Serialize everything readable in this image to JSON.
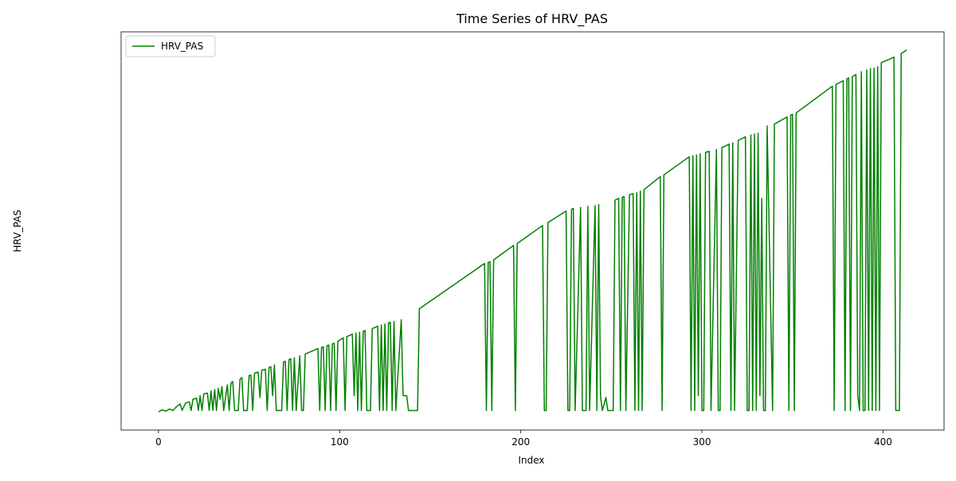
{
  "chart_data": {
    "type": "line",
    "title": "Time Series of HRV_PAS",
    "xlabel": "Index",
    "ylabel": "HRV_PAS",
    "xlim": [
      -20.65,
      433.65
    ],
    "xticks": [
      0,
      100,
      200,
      300,
      400
    ],
    "ylim": [
      -5,
      105
    ],
    "legend": "upper left",
    "x": [
      0,
      2,
      4,
      6,
      8,
      10,
      12,
      13,
      15,
      17,
      18,
      19,
      21,
      22,
      23,
      24,
      25,
      27,
      28,
      29,
      30,
      31,
      32,
      33,
      34,
      35,
      36,
      38,
      39,
      40,
      41,
      42,
      44,
      45,
      46,
      47,
      49,
      50,
      51,
      52,
      53,
      55,
      56,
      57,
      59,
      60,
      61,
      62,
      63,
      64,
      65,
      68,
      69,
      70,
      71,
      72,
      73,
      74,
      75,
      76,
      78,
      79,
      80,
      81,
      88,
      89,
      90,
      91,
      92,
      93,
      94,
      95,
      96,
      97,
      98,
      99,
      102,
      103,
      104,
      107,
      108,
      109,
      110,
      111,
      112,
      113,
      114,
      115,
      117,
      118,
      121,
      122,
      123,
      124,
      125,
      126,
      127,
      128,
      129,
      130,
      131,
      134,
      135,
      137,
      138,
      143,
      144,
      180,
      181,
      182,
      183,
      184,
      185,
      196,
      197,
      198,
      212,
      213,
      214,
      215,
      225,
      226,
      227,
      228,
      229,
      230,
      233,
      234,
      236,
      237,
      238,
      241,
      242,
      243,
      244,
      245,
      247,
      248,
      251,
      252,
      254,
      255,
      256,
      257,
      258,
      260,
      262,
      263,
      264,
      265,
      266,
      267,
      268,
      277,
      278,
      279,
      293,
      294,
      295,
      296,
      297,
      298,
      299,
      300,
      301,
      302,
      304,
      305,
      308,
      309,
      310,
      311,
      315,
      316,
      317,
      318,
      320,
      324,
      325,
      326,
      327,
      328,
      329,
      330,
      331,
      332,
      333,
      334,
      335,
      336,
      339,
      340,
      347,
      348,
      349,
      350,
      351,
      352,
      372,
      373,
      374,
      378,
      379,
      380,
      381,
      382,
      383,
      385,
      386,
      387,
      388,
      389,
      390,
      391,
      392,
      393,
      394,
      395,
      396,
      397,
      398,
      399,
      406,
      407,
      409,
      410,
      413
    ],
    "series": [
      {
        "name": "HRV_PAS",
        "color": "#008000",
        "values": [
          0,
          0.6,
          0.2,
          0.8,
          0.4,
          1.5,
          2.2,
          0.4,
          2.5,
          2.8,
          0.4,
          3.5,
          3.8,
          0.4,
          4.5,
          0.4,
          5,
          5.2,
          0.4,
          5.8,
          0.4,
          6.2,
          0.4,
          6.5,
          3.5,
          7,
          0.4,
          7.5,
          0.4,
          8,
          8.4,
          0.4,
          0.4,
          9,
          9.5,
          0.4,
          0.4,
          10,
          10.2,
          0.4,
          10.7,
          11,
          4,
          11.5,
          11.8,
          0.4,
          12.3,
          12.5,
          4.5,
          13,
          0.4,
          0.4,
          13.8,
          14,
          0.4,
          14.4,
          14.7,
          0.4,
          15,
          0.4,
          15.5,
          0.4,
          0.4,
          16,
          17.5,
          0.4,
          17.8,
          18,
          0.4,
          18.3,
          18.5,
          0.4,
          18.8,
          19,
          0.4,
          19.5,
          20.5,
          0.4,
          20.8,
          21.5,
          4.5,
          21.8,
          0.4,
          22,
          0.4,
          22.3,
          22.5,
          0.4,
          0.4,
          23,
          23.7,
          0.4,
          24,
          0.4,
          24.3,
          0.4,
          24.6,
          24.8,
          0.4,
          25,
          0.4,
          25.5,
          4.5,
          4.5,
          0.4,
          0.4,
          28.5,
          41,
          0.4,
          41.3,
          41.5,
          0.4,
          42,
          46,
          0.4,
          46.5,
          51.5,
          0.4,
          0.4,
          52.3,
          55.5,
          0.4,
          0.4,
          56,
          56.2,
          0.4,
          56.5,
          0.4,
          0.4,
          56.8,
          0.4,
          57,
          0.4,
          57.3,
          4.5,
          0.4,
          4,
          0.4,
          0.4,
          58.5,
          59,
          0.4,
          59.3,
          59.5,
          0.4,
          60,
          60.3,
          0.4,
          60.6,
          0.4,
          61,
          0.4,
          61.4,
          65,
          0.4,
          65.5,
          70.5,
          0.4,
          70.8,
          0.4,
          71,
          4.5,
          71.3,
          0.4,
          0.4,
          71.7,
          72,
          0.4,
          72.5,
          0.4,
          0.4,
          73,
          74,
          0.4,
          74.3,
          0.4,
          75,
          76,
          0.4,
          0.4,
          76.5,
          0.4,
          76.8,
          0.4,
          77,
          4.5,
          59,
          0.4,
          0.4,
          79,
          0.4,
          79.5,
          81.5,
          0.4,
          82,
          82.2,
          0.4,
          82.6,
          90,
          0.4,
          90.5,
          91.5,
          0.4,
          92,
          92.3,
          0.4,
          92.6,
          93.2,
          4.5,
          0.4,
          94,
          0.4,
          0.4,
          94.5,
          0.4,
          94.8,
          0.4,
          95,
          0.4,
          95.4,
          0.4,
          96.5,
          98,
          0.4,
          0.4,
          99,
          100
        ]
      }
    ]
  }
}
